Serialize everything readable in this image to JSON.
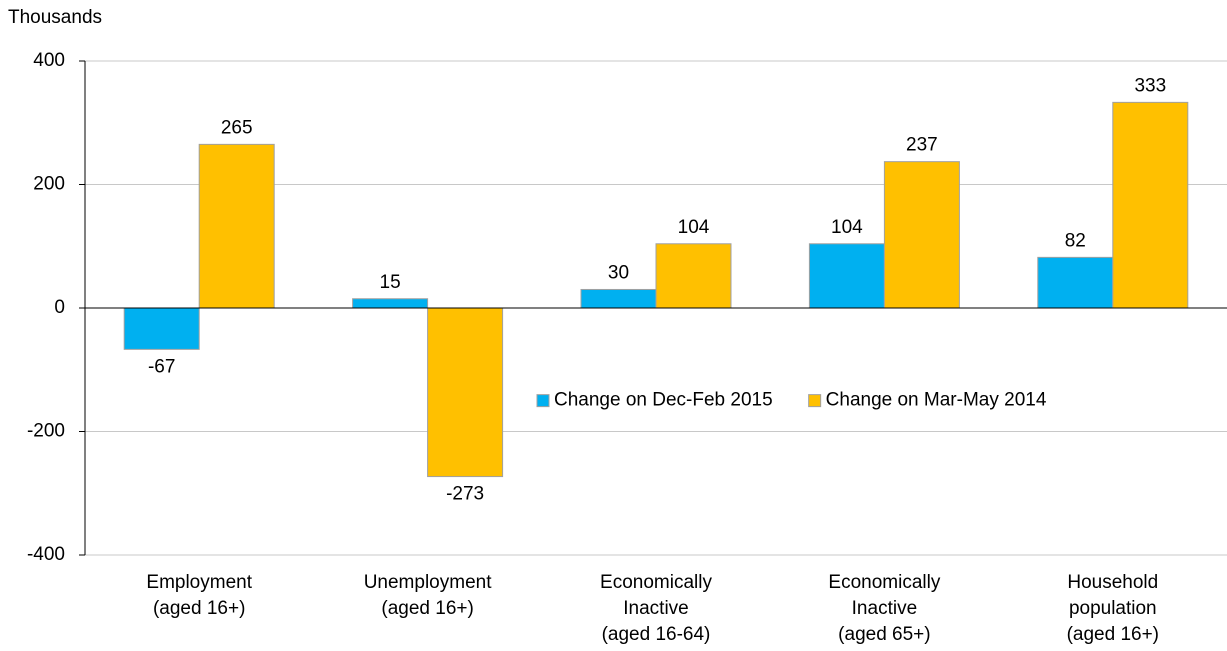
{
  "chart_data": {
    "type": "bar",
    "y_axis_label": "Thousands",
    "categories": [
      [
        "Employment",
        "(aged 16+)"
      ],
      [
        "Unemployment",
        "(aged 16+)"
      ],
      [
        "Economically",
        "Inactive",
        "(aged 16-64)"
      ],
      [
        "Economically",
        "Inactive",
        "(aged 65+)"
      ],
      [
        "Household",
        "population",
        "(aged 16+)"
      ]
    ],
    "series": [
      {
        "name": "Change on Dec-Feb 2015",
        "color": "#00b0f0",
        "values": [
          -67,
          15,
          30,
          104,
          82
        ]
      },
      {
        "name": "Change on Mar-May 2014",
        "color": "#ffc000",
        "values": [
          265,
          -273,
          104,
          237,
          333
        ]
      }
    ],
    "ylim": [
      -400,
      400
    ],
    "yticks": [
      -400,
      -200,
      0,
      200,
      400
    ],
    "grid": true,
    "legend": "center right"
  }
}
